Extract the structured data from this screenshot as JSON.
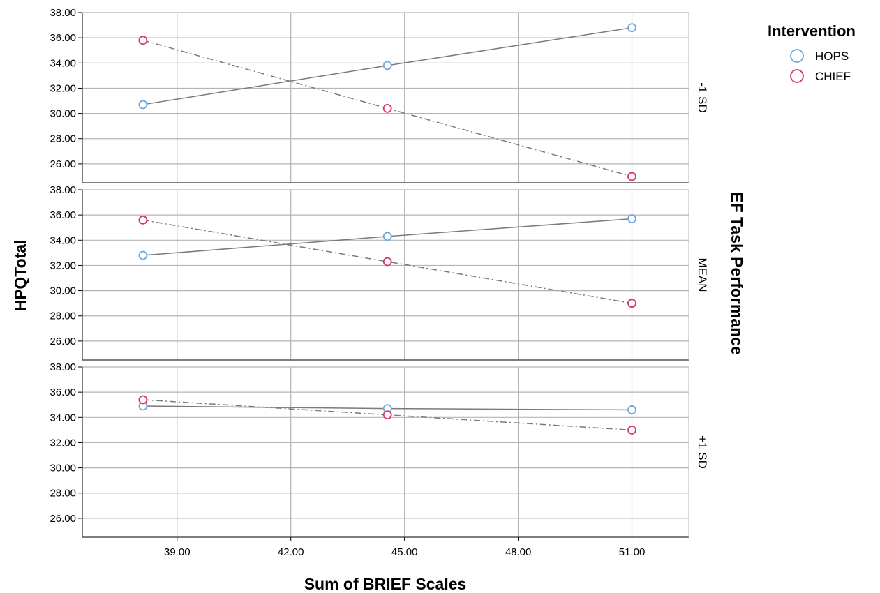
{
  "chart_data": {
    "type": "line",
    "xlabel": "Sum of BRIEF Scales",
    "ylabel": "HPQTotal",
    "facet_label": "EF Task Performance",
    "legend_title": "Intervention",
    "legend_position": "top-right",
    "grid": true,
    "xlim": [
      36.5,
      52.5
    ],
    "xticks": [
      "39.00",
      "42.00",
      "45.00",
      "48.00",
      "51.00"
    ],
    "ylim": [
      24.5,
      38.0
    ],
    "yticks": [
      "26.00",
      "28.00",
      "30.00",
      "32.00",
      "34.00",
      "36.00",
      "38.00"
    ],
    "x": [
      38.1,
      44.55,
      51.0
    ],
    "series_styles": [
      {
        "name": "HOPS",
        "color": "#6fa8dc",
        "line": "solid"
      },
      {
        "name": "CHIEF",
        "color": "#d8345f",
        "line": "dashdot"
      }
    ],
    "panels": [
      {
        "label": "-1 SD",
        "series": [
          {
            "name": "HOPS",
            "values": [
              30.7,
              33.8,
              36.8
            ]
          },
          {
            "name": "CHIEF",
            "values": [
              35.8,
              30.4,
              25.0
            ]
          }
        ]
      },
      {
        "label": "MEAN",
        "series": [
          {
            "name": "HOPS",
            "values": [
              32.8,
              34.3,
              35.7
            ]
          },
          {
            "name": "CHIEF",
            "values": [
              35.6,
              32.3,
              29.0
            ]
          }
        ]
      },
      {
        "label": "+1 SD",
        "series": [
          {
            "name": "HOPS",
            "values": [
              34.9,
              34.7,
              34.6
            ]
          },
          {
            "name": "CHIEF",
            "values": [
              35.4,
              34.2,
              33.0
            ]
          }
        ]
      }
    ]
  }
}
